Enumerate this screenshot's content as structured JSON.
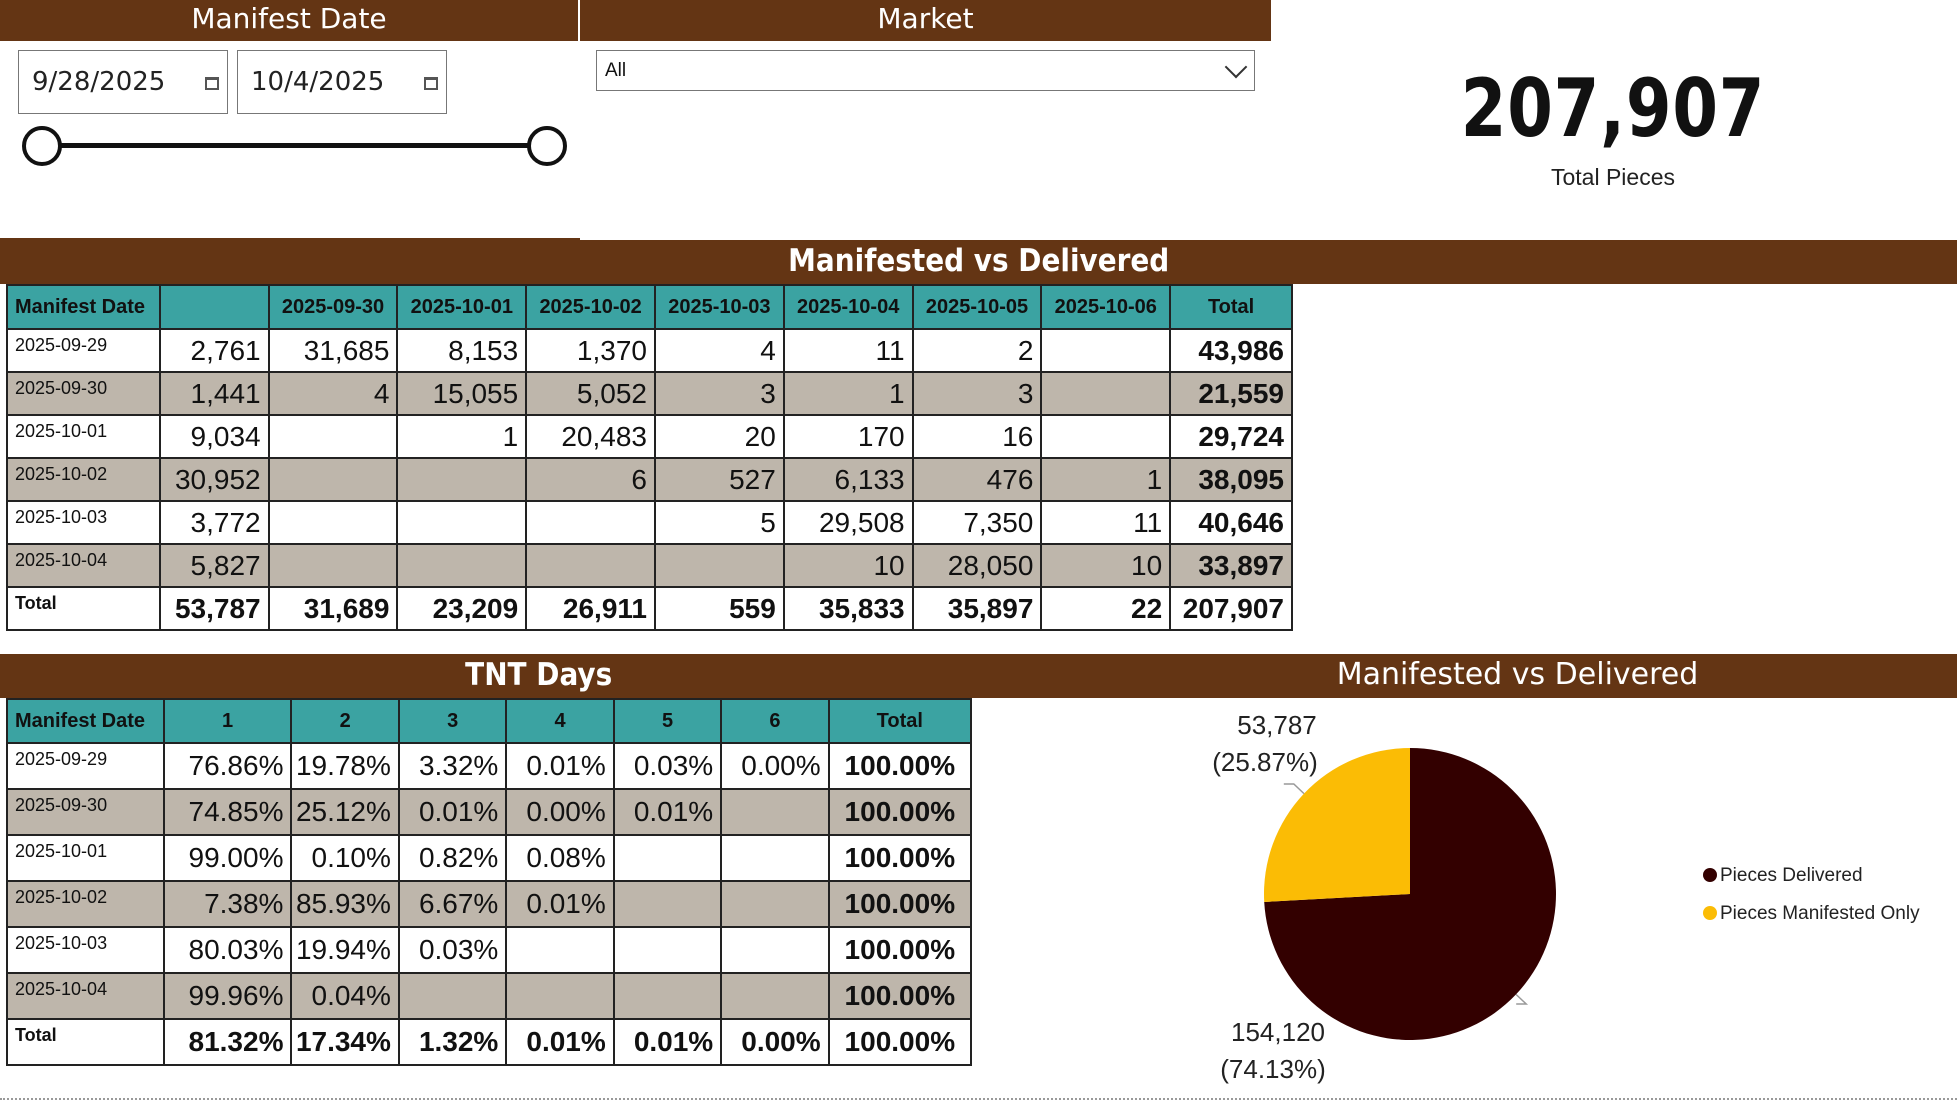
{
  "slicers": {
    "date_header": "Manifest Date",
    "start_date": "9/28/2025",
    "end_date": "10/4/2025",
    "market_header": "Market",
    "market_value": "All"
  },
  "kpi": {
    "value": "207,907",
    "label": "Total Pieces"
  },
  "mvd_matrix": {
    "title": "Manifested vs Delivered",
    "headers": [
      "Manifest Date",
      "",
      "2025-09-30",
      "2025-10-01",
      "2025-10-02",
      "2025-10-03",
      "2025-10-04",
      "2025-10-05",
      "2025-10-06",
      "Total"
    ],
    "rows": [
      [
        "2025-09-29",
        "2,761",
        "31,685",
        "8,153",
        "1,370",
        "4",
        "11",
        "2",
        "",
        "43,986"
      ],
      [
        "2025-09-30",
        "1,441",
        "4",
        "15,055",
        "5,052",
        "3",
        "1",
        "3",
        "",
        "21,559"
      ],
      [
        "2025-10-01",
        "9,034",
        "",
        "1",
        "20,483",
        "20",
        "170",
        "16",
        "",
        "29,724"
      ],
      [
        "2025-10-02",
        "30,952",
        "",
        "",
        "6",
        "527",
        "6,133",
        "476",
        "1",
        "38,095"
      ],
      [
        "2025-10-03",
        "3,772",
        "",
        "",
        "",
        "5",
        "29,508",
        "7,350",
        "11",
        "40,646"
      ],
      [
        "2025-10-04",
        "5,827",
        "",
        "",
        "",
        "",
        "10",
        "28,050",
        "10",
        "33,897"
      ],
      [
        "Total",
        "53,787",
        "31,689",
        "23,209",
        "26,911",
        "559",
        "35,833",
        "35,897",
        "22",
        "207,907"
      ]
    ]
  },
  "tnt_matrix": {
    "title": "TNT Days",
    "headers": [
      "Manifest Date",
      "1",
      "2",
      "3",
      "4",
      "5",
      "6",
      "Total"
    ],
    "rows": [
      [
        "2025-09-29",
        "76.86%",
        "19.78%",
        "3.32%",
        "0.01%",
        "0.03%",
        "0.00%",
        "100.00%"
      ],
      [
        "2025-09-30",
        "74.85%",
        "25.12%",
        "0.01%",
        "0.00%",
        "0.01%",
        "",
        "100.00%"
      ],
      [
        "2025-10-01",
        "99.00%",
        "0.10%",
        "0.82%",
        "0.08%",
        "",
        "",
        "100.00%"
      ],
      [
        "2025-10-02",
        "7.38%",
        "85.93%",
        "6.67%",
        "0.01%",
        "",
        "",
        "100.00%"
      ],
      [
        "2025-10-03",
        "80.03%",
        "19.94%",
        "0.03%",
        "",
        "",
        "",
        "100.00%"
      ],
      [
        "2025-10-04",
        "99.96%",
        "0.04%",
        "",
        "",
        "",
        "",
        "100.00%"
      ],
      [
        "Total",
        "81.32%",
        "17.34%",
        "1.32%",
        "0.01%",
        "0.01%",
        "0.00%",
        "100.00%"
      ]
    ]
  },
  "chart_data": {
    "type": "pie",
    "title": "Manifested vs Delivered",
    "legend_position": "right",
    "slices": [
      {
        "name": "Pieces Delivered",
        "value": 154120,
        "label": "154,120",
        "pct_label": "(74.13%)",
        "color": "#330000"
      },
      {
        "name": "Pieces Manifested Only",
        "value": 53787,
        "label": "53,787",
        "pct_label": "(25.87%)",
        "color": "#fbbc05"
      }
    ]
  },
  "colors": {
    "header_bar": "#643514",
    "matrix_header": "#3ba3a2",
    "alt_row": "#beb6ab"
  }
}
